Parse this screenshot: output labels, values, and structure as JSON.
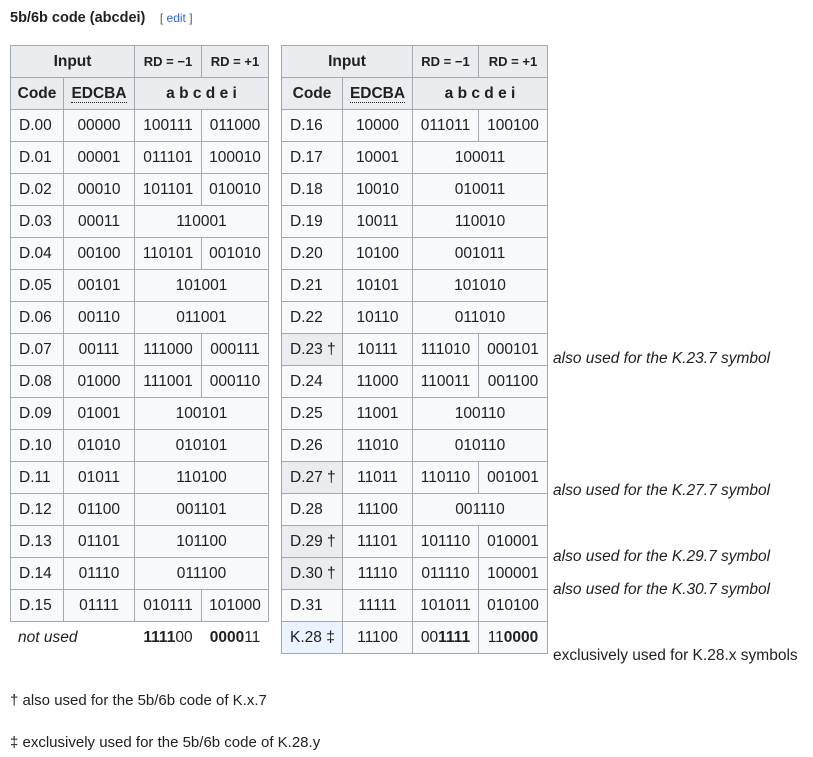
{
  "heading": {
    "title": "5b/6b code (abcdei)",
    "edit_open": "[",
    "edit_label": "edit",
    "edit_close": "]"
  },
  "headers": {
    "input": "Input",
    "rd_minus": "RD = −1",
    "rd_plus": "RD = +1",
    "code": "Code",
    "edcba": "EDCBA",
    "abcdei": "a b c d e i"
  },
  "left_rows": [
    {
      "code": "D.00",
      "edcba": "00000",
      "rdm": "100111",
      "rdp": "011000"
    },
    {
      "code": "D.01",
      "edcba": "00001",
      "rdm": "011101",
      "rdp": "100010"
    },
    {
      "code": "D.02",
      "edcba": "00010",
      "rdm": "101101",
      "rdp": "010010"
    },
    {
      "code": "D.03",
      "edcba": "00011",
      "both": "110001"
    },
    {
      "code": "D.04",
      "edcba": "00100",
      "rdm": "110101",
      "rdp": "001010"
    },
    {
      "code": "D.05",
      "edcba": "00101",
      "both": "101001"
    },
    {
      "code": "D.06",
      "edcba": "00110",
      "both": "011001"
    },
    {
      "code": "D.07",
      "edcba": "00111",
      "rdm": "111000",
      "rdp": "000111"
    },
    {
      "code": "D.08",
      "edcba": "01000",
      "rdm": "111001",
      "rdp": "000110"
    },
    {
      "code": "D.09",
      "edcba": "01001",
      "both": "100101"
    },
    {
      "code": "D.10",
      "edcba": "01010",
      "both": "010101"
    },
    {
      "code": "D.11",
      "edcba": "01011",
      "both": "110100"
    },
    {
      "code": "D.12",
      "edcba": "01100",
      "both": "001101"
    },
    {
      "code": "D.13",
      "edcba": "01101",
      "both": "101100"
    },
    {
      "code": "D.14",
      "edcba": "01110",
      "both": "011100"
    },
    {
      "code": "D.15",
      "edcba": "01111",
      "rdm": "010111",
      "rdp": "101000"
    }
  ],
  "not_used": {
    "label": "not used",
    "rdm_bold": "1111",
    "rdm_rest": "00",
    "rdp_bold": "0000",
    "rdp_rest": "11"
  },
  "right_rows": [
    {
      "code": "D.16",
      "edcba": "10000",
      "rdm": "011011",
      "rdp": "100100"
    },
    {
      "code": "D.17",
      "edcba": "10001",
      "both": "100011"
    },
    {
      "code": "D.18",
      "edcba": "10010",
      "both": "010011"
    },
    {
      "code": "D.19",
      "edcba": "10011",
      "both": "110010"
    },
    {
      "code": "D.20",
      "edcba": "10100",
      "both": "001011"
    },
    {
      "code": "D.21",
      "edcba": "10101",
      "both": "101010"
    },
    {
      "code": "D.22",
      "edcba": "10110",
      "both": "011010"
    },
    {
      "code": "D.23 †",
      "edcba": "10111",
      "rdm": "111010",
      "rdp": "000101",
      "dagger": true
    },
    {
      "code": "D.24",
      "edcba": "11000",
      "rdm": "110011",
      "rdp": "001100"
    },
    {
      "code": "D.25",
      "edcba": "11001",
      "both": "100110"
    },
    {
      "code": "D.26",
      "edcba": "11010",
      "both": "010110"
    },
    {
      "code": "D.27 †",
      "edcba": "11011",
      "rdm": "110110",
      "rdp": "001001",
      "dagger": true
    },
    {
      "code": "D.28",
      "edcba": "11100",
      "both": "001110"
    },
    {
      "code": "D.29 †",
      "edcba": "11101",
      "rdm": "101110",
      "rdp": "010001",
      "dagger": true
    },
    {
      "code": "D.30 †",
      "edcba": "11110",
      "rdm": "011110",
      "rdp": "100001",
      "dagger": true
    },
    {
      "code": "D.31",
      "edcba": "11111",
      "rdm": "101011",
      "rdp": "010100"
    }
  ],
  "k28": {
    "code": "K.28 ‡",
    "edcba": "11100",
    "rdm_pre": "00",
    "rdm_bold": "1111",
    "rdp_pre": "11",
    "rdp_bold": "0000"
  },
  "notes": {
    "d23": "also used for the K.23.7 symbol",
    "d27": "also used for the K.27.7 symbol",
    "d29": "also used for the K.29.7 symbol",
    "d30": "also used for the K.30.7 symbol",
    "k28": "exclusively used for K.28.x symbols"
  },
  "footnotes": {
    "dagger": "† also used for the 5b/6b code of K.x.7",
    "ddagger": "‡ exclusively used for the 5b/6b code of K.28.y"
  },
  "colors": {
    "border": "#a2a9b1",
    "header_bg": "#eaecf0",
    "cell_bg": "#f8f9fa",
    "special_bg": "#eaf3ff",
    "link": "#3366cc"
  }
}
